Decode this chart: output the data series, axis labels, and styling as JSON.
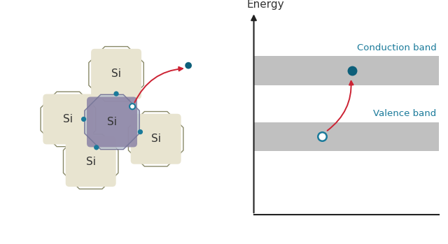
{
  "bg_color": "#ffffff",
  "si_fill": "#e8e4d0",
  "si_center_fill": "#9088a8",
  "si_center_overlay": "#b4bfd0",
  "bond_dot_color": "#1a7a9a",
  "hole_color": "#1a7a9a",
  "electron_color": "#0d5f7a",
  "arrow_color": "#cc2233",
  "band_fill": "#c0c0c0",
  "axis_color": "#222222",
  "label_color": "#1a7a9a",
  "text_color": "#333333",
  "si_label": "Si",
  "conduction_label": "Conduction band",
  "valence_label": "Valence band",
  "energy_label": "Energy",
  "oct_edge_color_center": "#777799",
  "oct_edge_color_surround": "#888866"
}
